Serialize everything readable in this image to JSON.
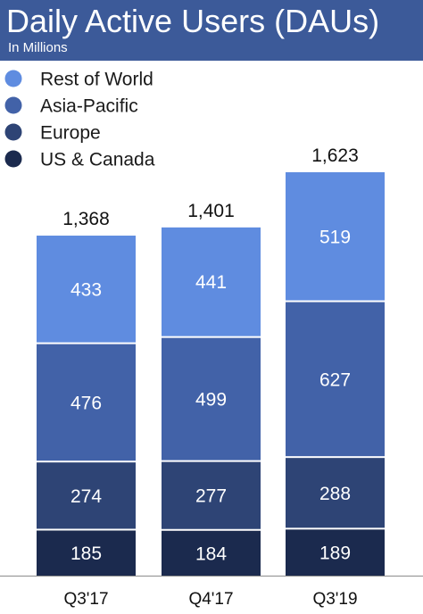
{
  "header": {
    "title": "Daily Active Users (DAUs)",
    "subtitle": "In Millions"
  },
  "chart_data": {
    "type": "bar",
    "stacked": true,
    "title": "Daily Active Users (DAUs)",
    "subtitle": "In Millions",
    "categories": [
      "Q3'17",
      "Q4'17",
      "Q3'19"
    ],
    "totals": [
      "1,368",
      "1,401",
      "1,623"
    ],
    "series": [
      {
        "name": "US & Canada",
        "color": "#1b2a4e",
        "values": [
          185,
          184,
          189
        ]
      },
      {
        "name": "Europe",
        "color": "#2e4475",
        "values": [
          274,
          277,
          288
        ]
      },
      {
        "name": "Asia-Pacific",
        "color": "#4262a8",
        "values": [
          476,
          499,
          627
        ]
      },
      {
        "name": "Rest of World",
        "color": "#5f8ce0",
        "values": [
          433,
          441,
          519
        ]
      }
    ],
    "legend_order": [
      "Rest of World",
      "Asia-Pacific",
      "Europe",
      "US & Canada"
    ],
    "legend_position": "top-left",
    "grid": false,
    "ylim": [
      0,
      1623
    ]
  }
}
